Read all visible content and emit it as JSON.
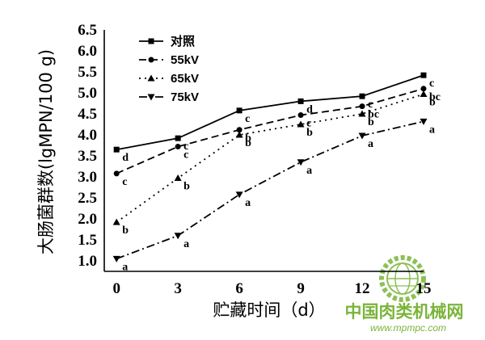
{
  "chart_data": {
    "type": "line",
    "xlabel": "贮藏时间（d）",
    "ylabel": "大肠菌群数(lgMPN/100 g)",
    "x": [
      0,
      3,
      6,
      9,
      12,
      15
    ],
    "xticks": [
      "0",
      "3",
      "6",
      "9",
      "12",
      "15"
    ],
    "yticks": [
      "1.0",
      "1.5",
      "2.0",
      "2.5",
      "3.0",
      "3.5",
      "4.0",
      "4.5",
      "5.0",
      "5.5",
      "6.0",
      "6.5"
    ],
    "xlim": [
      -0.6,
      15
    ],
    "ylim": [
      0.75,
      6.5
    ],
    "grid": false,
    "legend_position": "top-left",
    "series": [
      {
        "name": "对照",
        "marker": "square",
        "dash": "solid",
        "values": [
          3.65,
          3.92,
          4.58,
          4.8,
          4.92,
          5.42
        ],
        "sig": [
          "d",
          "c",
          "c",
          "d",
          "c",
          "c"
        ]
      },
      {
        "name": "55kV",
        "marker": "circle",
        "dash": "dash",
        "values": [
          3.08,
          3.72,
          4.12,
          4.47,
          4.68,
          5.1
        ],
        "sig": [
          "c",
          "c",
          "b",
          "c",
          "bc",
          "bc"
        ]
      },
      {
        "name": "65kV",
        "marker": "triangle-up",
        "dash": "dot",
        "values": [
          1.92,
          2.97,
          4.0,
          4.25,
          4.5,
          4.97
        ],
        "sig": [
          "b",
          "b",
          "b",
          "b",
          "b",
          "b"
        ]
      },
      {
        "name": "75kV",
        "marker": "triangle-down",
        "dash": "dashdot",
        "values": [
          1.05,
          1.6,
          2.58,
          3.35,
          3.98,
          4.32
        ],
        "sig": [
          "a",
          "a",
          "a",
          "a",
          "a",
          "a"
        ]
      }
    ]
  },
  "watermark": {
    "title": "中国肉类机械网",
    "url": "www.mpmpc.com",
    "logo_icon": "gear-globe-icon"
  }
}
